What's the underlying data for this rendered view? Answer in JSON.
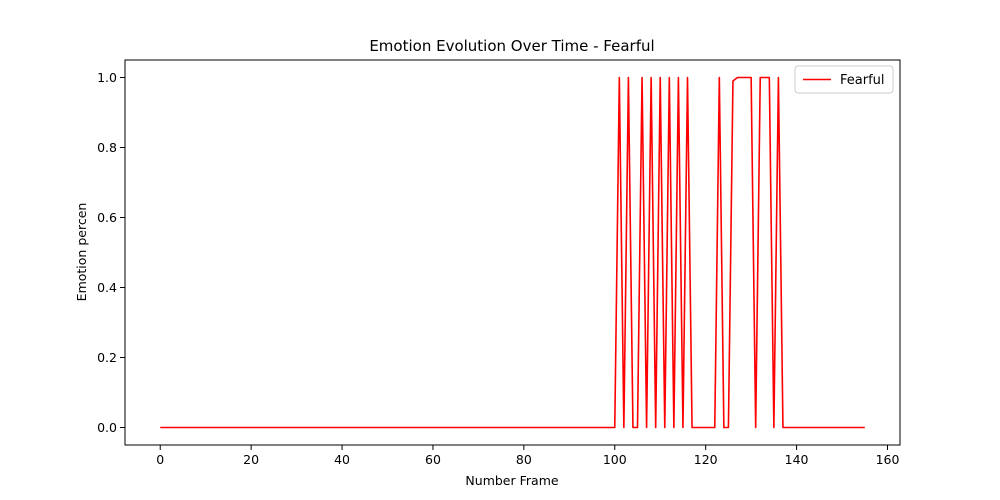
{
  "chart_data": {
    "type": "line",
    "title": "Emotion Evolution Over Time - Fearful",
    "xlabel": "Number Frame",
    "ylabel": "Emotion percen",
    "xlim": [
      -7.75,
      162.75
    ],
    "ylim": [
      -0.05,
      1.05
    ],
    "xticks": [
      0,
      20,
      40,
      60,
      80,
      100,
      120,
      140,
      160
    ],
    "yticks": [
      0.0,
      0.2,
      0.4,
      0.6,
      0.8,
      1.0
    ],
    "xtick_labels": [
      "0",
      "20",
      "40",
      "60",
      "80",
      "100",
      "120",
      "140",
      "160"
    ],
    "ytick_labels": [
      "0.0",
      "0.2",
      "0.4",
      "0.6",
      "0.8",
      "1.0"
    ],
    "grid": false,
    "legend": "top-right",
    "series": [
      {
        "name": "Fearful",
        "color": "#ff0000",
        "x": [
          0,
          100,
          101,
          102,
          103,
          104,
          105,
          106,
          107,
          108,
          109,
          110,
          111,
          112,
          113,
          114,
          115,
          116,
          117,
          118,
          119,
          120,
          121,
          122,
          123,
          124,
          125,
          126,
          127,
          128,
          129,
          130,
          131,
          132,
          133,
          134,
          135,
          136,
          137,
          155
        ],
        "values": [
          0,
          0,
          1,
          0,
          1,
          0,
          0,
          1,
          0,
          1,
          0,
          1,
          0,
          1,
          0,
          1,
          0,
          1,
          0,
          0,
          0,
          0,
          0,
          0,
          1,
          0,
          0,
          0.99,
          1,
          1,
          1,
          1,
          0,
          1,
          1,
          1,
          0,
          1,
          0,
          0
        ]
      }
    ]
  }
}
